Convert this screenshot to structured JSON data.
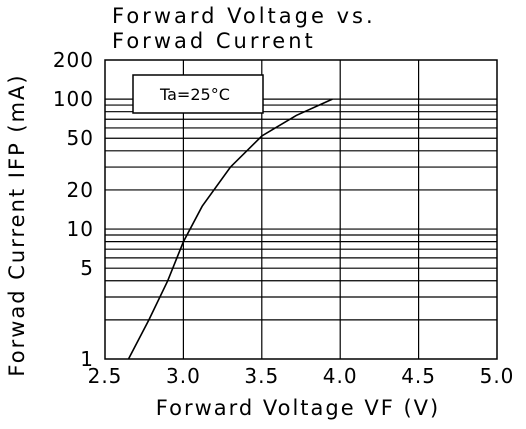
{
  "chart_data": {
    "type": "line",
    "title_lines": [
      "Forward Voltage vs.",
      "Forwad Current"
    ],
    "xlabel": "Forward Voltage VF (V)",
    "ylabel": "Forwad Current IFP (mA)",
    "x_scale": "linear",
    "y_scale": "log",
    "xlim": [
      2.5,
      5.0
    ],
    "ylim": [
      1,
      200
    ],
    "x_ticks": [
      "2.5",
      "3.0",
      "3.5",
      "4.0",
      "4.5",
      "5.0"
    ],
    "x_tick_values": [
      2.5,
      3.0,
      3.5,
      4.0,
      4.5,
      5.0
    ],
    "y_ticks": [
      "1",
      "5",
      "10",
      "20",
      "50",
      "100",
      "200"
    ],
    "y_tick_values": [
      1,
      5,
      10,
      20,
      50,
      100,
      200
    ],
    "y_gridlines": [
      2,
      3,
      4,
      5,
      6,
      7,
      8,
      9,
      10,
      20,
      30,
      40,
      50,
      60,
      70,
      80,
      90,
      100
    ],
    "grid": true,
    "annotation": "Ta=25°C",
    "series": [
      {
        "x": [
          2.65,
          2.78,
          2.9,
          3.0,
          3.12,
          3.3,
          3.5,
          3.72,
          3.95
        ],
        "y": [
          1,
          2,
          4,
          8,
          15,
          30,
          52,
          75,
          100
        ]
      }
    ]
  }
}
